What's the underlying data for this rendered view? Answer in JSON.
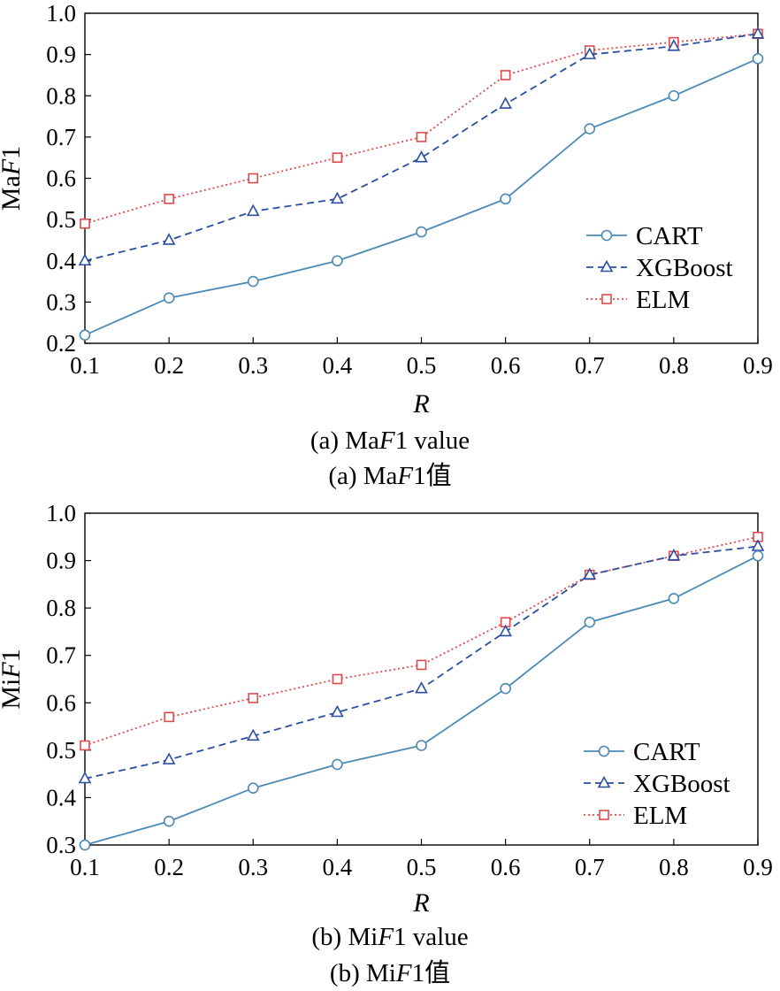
{
  "colors": {
    "CART": "#4a8ab5",
    "XGBoost": "#2b4fa0",
    "ELM": "#e0484a"
  },
  "chart_data": [
    {
      "type": "line",
      "ylabel_prefix": "Ma",
      "ylabel_italic": "F",
      "ylabel_suffix": "1",
      "xlabel": "R",
      "x": [
        0.1,
        0.2,
        0.3,
        0.4,
        0.5,
        0.6,
        0.7,
        0.8,
        0.9
      ],
      "x_ticks": [
        "0.1",
        "0.2",
        "0.3",
        "0.4",
        "0.5",
        "0.6",
        "0.7",
        "0.8",
        "0.9"
      ],
      "ylim": [
        0.2,
        1.0
      ],
      "y_ticks": [
        "0.2",
        "0.3",
        "0.4",
        "0.5",
        "0.6",
        "0.7",
        "0.8",
        "0.9",
        "1.0"
      ],
      "legend_position": "center-right",
      "series": [
        {
          "name": "CART",
          "marker": "circle",
          "style": "solid",
          "values": [
            0.22,
            0.31,
            0.35,
            0.4,
            0.47,
            0.55,
            0.72,
            0.8,
            0.89
          ]
        },
        {
          "name": "XGBoost",
          "marker": "triangle",
          "style": "dashed",
          "values": [
            0.4,
            0.45,
            0.52,
            0.55,
            0.65,
            0.78,
            0.9,
            0.92,
            0.95
          ]
        },
        {
          "name": "ELM",
          "marker": "square",
          "style": "dotted",
          "values": [
            0.49,
            0.55,
            0.6,
            0.65,
            0.7,
            0.85,
            0.91,
            0.93,
            0.95
          ]
        }
      ]
    },
    {
      "type": "line",
      "ylabel_prefix": "Mi",
      "ylabel_italic": "F",
      "ylabel_suffix": "1",
      "xlabel": "R",
      "x": [
        0.1,
        0.2,
        0.3,
        0.4,
        0.5,
        0.6,
        0.7,
        0.8,
        0.9
      ],
      "x_ticks": [
        "0.1",
        "0.2",
        "0.3",
        "0.4",
        "0.5",
        "0.6",
        "0.7",
        "0.8",
        "0.9"
      ],
      "ylim": [
        0.3,
        1.0
      ],
      "y_ticks": [
        "0.3",
        "0.4",
        "0.5",
        "0.6",
        "0.7",
        "0.8",
        "0.9",
        "1.0"
      ],
      "legend_position": "bottom-right",
      "series": [
        {
          "name": "CART",
          "marker": "circle",
          "style": "solid",
          "values": [
            0.3,
            0.35,
            0.42,
            0.47,
            0.51,
            0.63,
            0.77,
            0.82,
            0.91
          ]
        },
        {
          "name": "XGBoost",
          "marker": "triangle",
          "style": "dashed",
          "values": [
            0.44,
            0.48,
            0.53,
            0.58,
            0.63,
            0.75,
            0.87,
            0.91,
            0.93
          ]
        },
        {
          "name": "ELM",
          "marker": "square",
          "style": "dotted",
          "values": [
            0.51,
            0.57,
            0.61,
            0.65,
            0.68,
            0.77,
            0.87,
            0.91,
            0.95
          ]
        }
      ]
    }
  ],
  "captions": {
    "a_en": {
      "prefix": "(a) Ma",
      "italic": "F",
      "suffix": "1 value"
    },
    "a_cn": {
      "prefix": "(a) Ma",
      "italic": "F",
      "suffix": "1值"
    },
    "b_en": {
      "prefix": "(b) Mi",
      "italic": "F",
      "suffix": "1 value"
    },
    "b_cn": {
      "prefix": "(b) Mi",
      "italic": "F",
      "suffix": "1值"
    }
  }
}
